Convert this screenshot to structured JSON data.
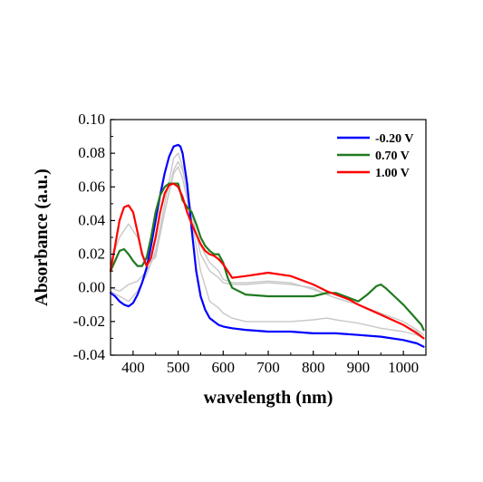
{
  "chart_data": {
    "type": "line",
    "title": "",
    "xlabel": "wavelength (nm)",
    "ylabel": "Absorbance (a.u.)",
    "xlim": [
      350,
      1050
    ],
    "ylim": [
      -0.04,
      0.1
    ],
    "x_ticks": [
      400,
      500,
      600,
      700,
      800,
      900,
      1000
    ],
    "x_tick_labels": [
      "400",
      "500",
      "600",
      "700",
      "800",
      "900",
      "1000"
    ],
    "y_ticks": [
      -0.04,
      -0.02,
      0.0,
      0.02,
      0.04,
      0.06,
      0.08,
      0.1
    ],
    "y_tick_labels": [
      "-0.04",
      "-0.02",
      "0.00",
      "0.02",
      "0.04",
      "0.06",
      "0.08",
      "0.10"
    ],
    "grid": false,
    "legend_position": "top-right",
    "series": [
      {
        "name": "",
        "color": "#c8c8c8",
        "x": [
          350,
          370,
          390,
          410,
          430,
          450,
          470,
          490,
          500,
          510,
          530,
          550,
          570,
          590,
          600,
          620,
          650,
          700,
          750,
          800,
          830,
          850,
          900,
          950,
          1000,
          1030,
          1045
        ],
        "y": [
          0.0,
          -0.002,
          0.002,
          0.004,
          0.01,
          0.02,
          0.045,
          0.07,
          0.075,
          0.07,
          0.045,
          0.02,
          0.01,
          0.006,
          0.003,
          0.002,
          0.002,
          0.003,
          0.002,
          0.0,
          -0.004,
          -0.006,
          -0.01,
          -0.015,
          -0.02,
          -0.025,
          -0.028
        ]
      },
      {
        "name": "",
        "color": "#c8c8c8",
        "x": [
          350,
          370,
          390,
          410,
          430,
          450,
          470,
          490,
          500,
          510,
          530,
          550,
          570,
          590,
          600,
          620,
          650,
          700,
          750,
          800,
          830,
          850,
          900,
          950,
          1000,
          1030,
          1045
        ],
        "y": [
          0.015,
          0.03,
          0.038,
          0.03,
          0.014,
          0.018,
          0.045,
          0.068,
          0.072,
          0.065,
          0.04,
          0.025,
          0.015,
          0.01,
          0.005,
          0.003,
          0.003,
          0.004,
          0.003,
          -0.001,
          -0.004,
          -0.006,
          -0.01,
          -0.016,
          -0.022,
          -0.026,
          -0.03
        ]
      },
      {
        "name": "",
        "color": "#c8c8c8",
        "x": [
          350,
          370,
          390,
          410,
          430,
          450,
          470,
          490,
          500,
          510,
          530,
          550,
          570,
          590,
          600,
          620,
          650,
          700,
          750,
          800,
          830,
          850,
          900,
          950,
          1000,
          1030,
          1045
        ],
        "y": [
          -0.002,
          -0.005,
          -0.008,
          -0.002,
          0.008,
          0.022,
          0.05,
          0.077,
          0.08,
          0.072,
          0.04,
          0.01,
          -0.008,
          -0.012,
          -0.015,
          -0.018,
          -0.02,
          -0.02,
          -0.02,
          -0.019,
          -0.018,
          -0.019,
          -0.021,
          -0.024,
          -0.026,
          -0.028,
          -0.03
        ]
      },
      {
        "name": "-0.20 V",
        "color": "#0000ff",
        "x": [
          350,
          360,
          370,
          380,
          390,
          400,
          410,
          420,
          430,
          440,
          450,
          460,
          470,
          480,
          490,
          500,
          505,
          510,
          520,
          530,
          540,
          550,
          560,
          570,
          580,
          590,
          600,
          620,
          650,
          700,
          750,
          800,
          850,
          900,
          950,
          1000,
          1030,
          1045
        ],
        "y": [
          -0.003,
          -0.005,
          -0.008,
          -0.01,
          -0.011,
          -0.009,
          -0.004,
          0.003,
          0.012,
          0.025,
          0.04,
          0.055,
          0.068,
          0.078,
          0.084,
          0.085,
          0.084,
          0.08,
          0.062,
          0.035,
          0.01,
          -0.005,
          -0.013,
          -0.018,
          -0.02,
          -0.022,
          -0.023,
          -0.024,
          -0.025,
          -0.026,
          -0.026,
          -0.027,
          -0.027,
          -0.028,
          -0.029,
          -0.031,
          -0.033,
          -0.035
        ]
      },
      {
        "name": "0.70 V",
        "color": "#1f7a1f",
        "x": [
          350,
          360,
          370,
          380,
          390,
          400,
          410,
          420,
          430,
          440,
          450,
          460,
          470,
          480,
          490,
          500,
          510,
          520,
          530,
          540,
          550,
          560,
          570,
          580,
          590,
          600,
          610,
          620,
          650,
          700,
          750,
          780,
          800,
          830,
          850,
          880,
          900,
          920,
          940,
          950,
          960,
          980,
          1000,
          1020,
          1040,
          1045
        ],
        "y": [
          0.01,
          0.016,
          0.022,
          0.023,
          0.02,
          0.016,
          0.013,
          0.013,
          0.018,
          0.03,
          0.045,
          0.055,
          0.06,
          0.062,
          0.062,
          0.062,
          0.052,
          0.048,
          0.045,
          0.038,
          0.03,
          0.025,
          0.022,
          0.02,
          0.02,
          0.015,
          0.006,
          0.0,
          -0.004,
          -0.005,
          -0.005,
          -0.005,
          -0.005,
          -0.003,
          -0.003,
          -0.006,
          -0.008,
          -0.004,
          0.001,
          0.002,
          0.0,
          -0.005,
          -0.01,
          -0.016,
          -0.022,
          -0.025
        ]
      },
      {
        "name": "1.00 V",
        "color": "#ff0000",
        "x": [
          350,
          360,
          370,
          380,
          390,
          400,
          410,
          420,
          430,
          440,
          450,
          460,
          470,
          480,
          490,
          500,
          510,
          520,
          530,
          540,
          550,
          560,
          570,
          580,
          590,
          600,
          610,
          620,
          650,
          700,
          750,
          800,
          830,
          850,
          880,
          900,
          950,
          1000,
          1030,
          1045
        ],
        "y": [
          0.01,
          0.025,
          0.04,
          0.048,
          0.049,
          0.045,
          0.033,
          0.02,
          0.013,
          0.018,
          0.03,
          0.045,
          0.056,
          0.061,
          0.062,
          0.06,
          0.054,
          0.045,
          0.038,
          0.032,
          0.026,
          0.022,
          0.02,
          0.019,
          0.017,
          0.014,
          0.01,
          0.006,
          0.007,
          0.009,
          0.007,
          0.002,
          -0.002,
          -0.004,
          -0.007,
          -0.01,
          -0.016,
          -0.022,
          -0.027,
          -0.03
        ]
      }
    ]
  }
}
